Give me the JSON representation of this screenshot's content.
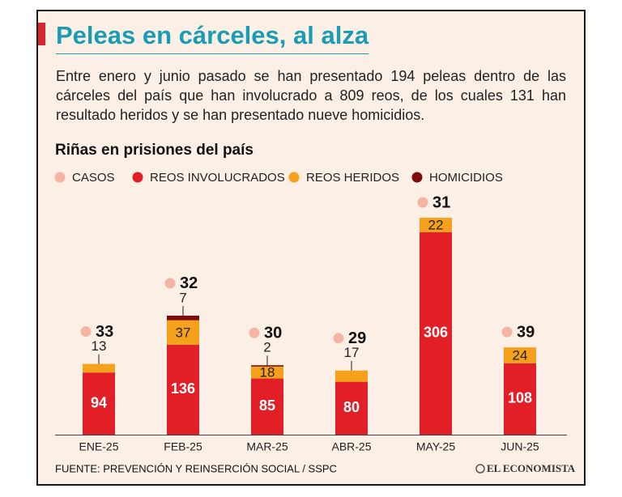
{
  "header": {
    "title": "Peleas en cárceles, al alza",
    "description": "Entre enero y junio pasado se han presentado 194 peleas dentro de las cárceles del país que han involucrado a 809 reos, de los cuales 131 han resultado heridos y se han presentado nueve homicidios."
  },
  "chart_data": {
    "type": "stacked_bar",
    "title": "Riñas en prisiones del país",
    "categories": [
      "ENE-25",
      "FEB-25",
      "MAR-25",
      "ABR-25",
      "MAY-25",
      "JUN-25"
    ],
    "series": [
      {
        "name": "CASOS",
        "color": "#f5b5a2",
        "values": [
          33,
          32,
          30,
          29,
          31,
          39
        ]
      },
      {
        "name": "REOS INVOLUCRADOS",
        "color": "#e21f26",
        "values": [
          94,
          136,
          85,
          80,
          306,
          108
        ]
      },
      {
        "name": "REOS HERIDOS",
        "color": "#f6a11c",
        "values": [
          13,
          37,
          18,
          17,
          22,
          24
        ]
      },
      {
        "name": "HOMICIDIOS",
        "color": "#7c0b0e",
        "values": [
          null,
          7,
          2,
          null,
          null,
          null
        ]
      }
    ]
  },
  "footer": {
    "source": "FUENTE: PREVENCIÓN Y REINSERCIÓN SOCIAL / SSPC",
    "logo": "EL ECONOMISTA"
  }
}
